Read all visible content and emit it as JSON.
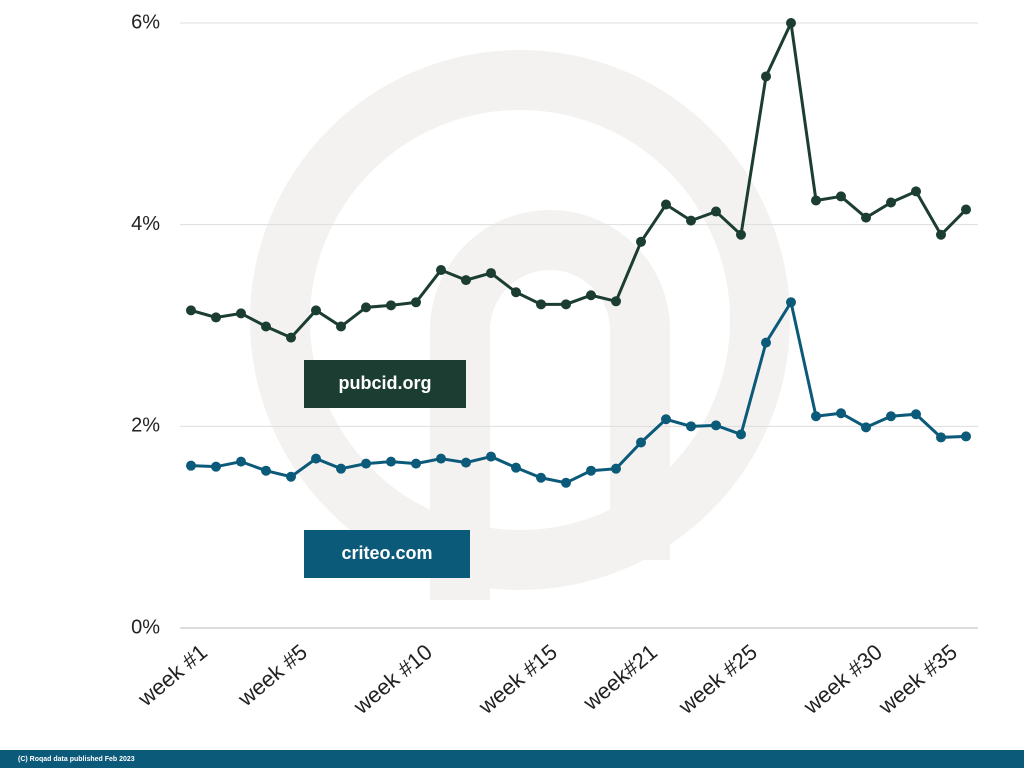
{
  "chart_data": {
    "type": "line",
    "categories": [
      "week #1",
      null,
      null,
      null,
      "week #5",
      null,
      null,
      null,
      null,
      "week #10",
      null,
      null,
      null,
      null,
      "week #15",
      null,
      null,
      null,
      "week#21",
      null,
      null,
      null,
      "week #25",
      null,
      null,
      null,
      null,
      "week #30",
      null,
      null,
      "week #35",
      null
    ],
    "series": [
      {
        "name": "pubcid.org",
        "color": "#1b3d32",
        "values": [
          3.15,
          3.08,
          3.12,
          2.99,
          2.88,
          3.15,
          2.99,
          3.18,
          3.2,
          3.23,
          3.55,
          3.45,
          3.52,
          3.33,
          3.21,
          3.21,
          3.3,
          3.24,
          3.83,
          4.2,
          4.04,
          4.13,
          3.9,
          5.47,
          6.0,
          4.24,
          4.28,
          4.07,
          4.22,
          4.33,
          3.9,
          4.15
        ]
      },
      {
        "name": "criteo.com",
        "color": "#0c5a7a",
        "values": [
          1.61,
          1.6,
          1.65,
          1.56,
          1.5,
          1.68,
          1.58,
          1.63,
          1.65,
          1.63,
          1.68,
          1.64,
          1.7,
          1.59,
          1.49,
          1.44,
          1.56,
          1.58,
          1.84,
          2.07,
          2.0,
          2.01,
          1.92,
          2.83,
          3.23,
          2.1,
          2.13,
          1.99,
          2.1,
          2.12,
          1.89,
          1.9
        ]
      }
    ],
    "ylim": [
      0,
      6
    ],
    "yticks": [
      {
        "value": 0,
        "label": "0%"
      },
      {
        "value": 2,
        "label": "2%"
      },
      {
        "value": 4,
        "label": "4%"
      },
      {
        "value": 6,
        "label": "6%"
      }
    ],
    "grid": true
  },
  "footer": "(C) Roqad data published Feb  2023"
}
